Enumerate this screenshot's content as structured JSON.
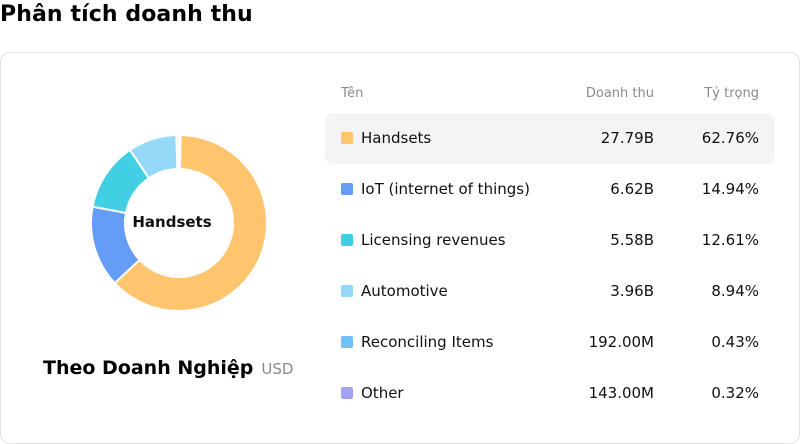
{
  "page_title": "Phân tích doanh thu",
  "donut": {
    "center_label": "Handsets",
    "caption_title": "Theo Doanh Nghiệp",
    "caption_unit": "USD"
  },
  "table": {
    "headers": {
      "name": "Tên",
      "revenue": "Doanh thu",
      "share": "Tỷ trọng"
    },
    "rows": [
      {
        "name": "Handsets",
        "revenue": "27.79B",
        "share": "62.76%",
        "share_value": 62.76,
        "color": "#FFC56E",
        "active": true
      },
      {
        "name": "IoT (internet of things)",
        "revenue": "6.62B",
        "share": "14.94%",
        "share_value": 14.94,
        "color": "#649CF8",
        "active": false
      },
      {
        "name": "Licensing revenues",
        "revenue": "5.58B",
        "share": "12.61%",
        "share_value": 12.61,
        "color": "#40CFE3",
        "active": false
      },
      {
        "name": "Automotive",
        "revenue": "3.96B",
        "share": "8.94%",
        "share_value": 8.94,
        "color": "#96D8F8",
        "active": false
      },
      {
        "name": "Reconciling Items",
        "revenue": "192.00M",
        "share": "0.43%",
        "share_value": 0.43,
        "color": "#6FC2F3",
        "active": false
      },
      {
        "name": "Other",
        "revenue": "143.00M",
        "share": "0.32%",
        "share_value": 0.32,
        "color": "#A1A3F7",
        "active": false
      }
    ]
  }
}
